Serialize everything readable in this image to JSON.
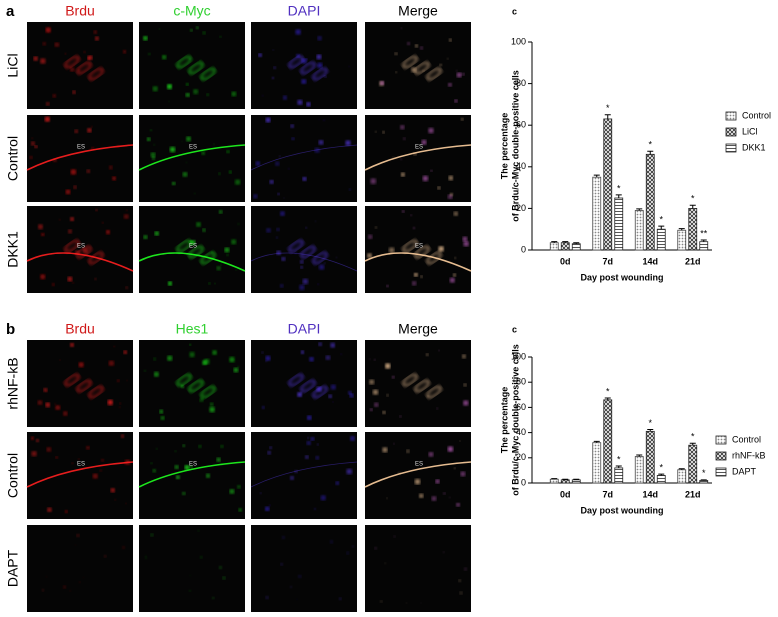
{
  "panels": [
    {
      "letter": "a",
      "columns": [
        "Brdu",
        "c-Myc",
        "DAPI",
        "Merge"
      ],
      "rows": [
        "LiCl",
        "Control",
        "DKK1"
      ],
      "marker": "ES"
    },
    {
      "letter": "b",
      "columns": [
        "Brdu",
        "Hes1",
        "DAPI",
        "Merge"
      ],
      "rows": [
        "rhNF-kB",
        "Control",
        "DAPT"
      ],
      "marker": "ES"
    }
  ],
  "chart_data": [
    {
      "type": "bar",
      "title": "c",
      "y_label": [
        "The percentage",
        "of Brdu/c-Myc double-positive cells"
      ],
      "x_label": "Day post wounding",
      "categories": [
        "0d",
        "7d",
        "14d",
        "21d"
      ],
      "series": [
        {
          "name": "Control",
          "color": "#888888",
          "pattern": "dots",
          "values": [
            3.5,
            35,
            19,
            9.5
          ],
          "errors": [
            0.5,
            1,
            0.8,
            0.8
          ],
          "significance": [
            null,
            null,
            null,
            null
          ]
        },
        {
          "name": "LiCl",
          "color": "#444444",
          "pattern": "cross",
          "values": [
            3.5,
            63,
            46,
            20
          ],
          "errors": [
            0.5,
            2,
            1.5,
            1.5
          ],
          "significance": [
            null,
            "*",
            "*",
            "*"
          ]
        },
        {
          "name": "DKK1",
          "color": "#666666",
          "pattern": "hlines",
          "values": [
            3,
            25,
            10,
            4
          ],
          "errors": [
            0.5,
            1.5,
            1.5,
            0.8
          ],
          "significance": [
            null,
            "*",
            "*",
            "**"
          ]
        }
      ],
      "ylim": [
        0,
        100
      ],
      "yticks": [
        0,
        20,
        40,
        60,
        80,
        100
      ]
    },
    {
      "type": "bar",
      "title": "c",
      "y_label": [
        "The percentage",
        "of Brdu/c-Myc double-positive cells"
      ],
      "x_label": "Day post wounding",
      "categories": [
        "0d",
        "7d",
        "14d",
        "21d"
      ],
      "series": [
        {
          "name": "Control",
          "color": "#888888",
          "pattern": "dots",
          "values": [
            3,
            32,
            21,
            10.5
          ],
          "errors": [
            0.5,
            1,
            1.2,
            0.8
          ],
          "significance": [
            null,
            null,
            null,
            null
          ]
        },
        {
          "name": "rhNF-kB",
          "color": "#444444",
          "pattern": "cross",
          "values": [
            2.5,
            66,
            41,
            30
          ],
          "errors": [
            0.5,
            1.5,
            1.5,
            1.5
          ],
          "significance": [
            null,
            "*",
            "*",
            "*"
          ]
        },
        {
          "name": "DAPT",
          "color": "#666666",
          "pattern": "hlines",
          "values": [
            2.5,
            12,
            6,
            2
          ],
          "errors": [
            0.5,
            1.5,
            1,
            0.5
          ],
          "significance": [
            null,
            "*",
            "*",
            "*"
          ]
        }
      ],
      "ylim": [
        0,
        100
      ],
      "yticks": [
        0,
        20,
        40,
        60,
        80,
        100
      ]
    }
  ]
}
